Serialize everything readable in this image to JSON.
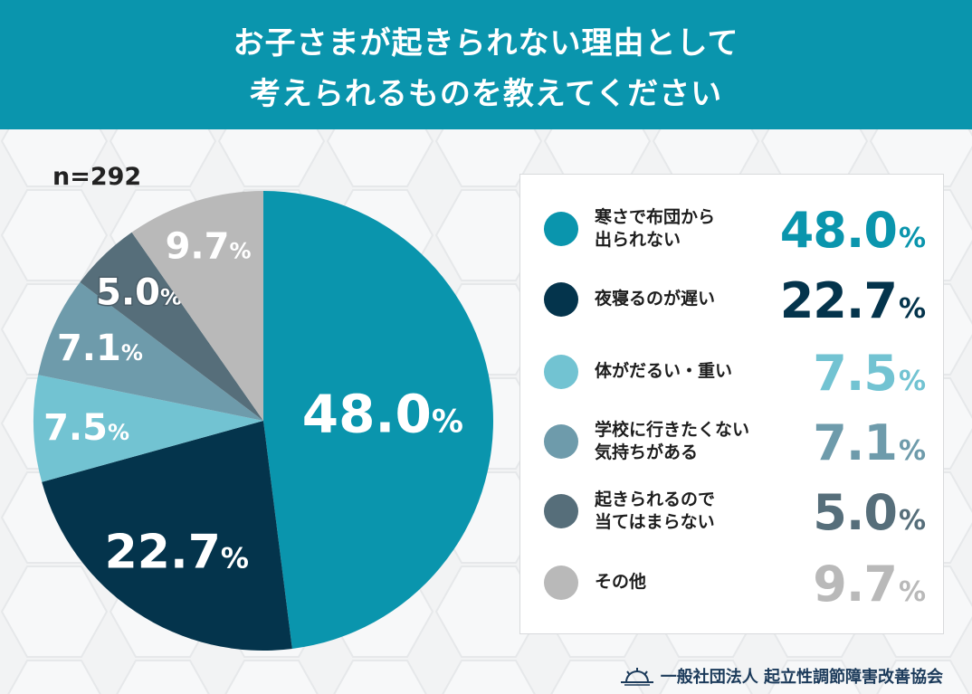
{
  "header": {
    "title_line1": "お子さまが起きられない理由として",
    "title_line2": "考えられるものを教えてください"
  },
  "sample": "n=292",
  "footer": {
    "org": "一般社団法人 起立性調節障害改善協会"
  },
  "chart_data": {
    "type": "pie",
    "title": "お子さまが起きられない理由として考えられるものを教えてください",
    "slices": [
      {
        "label": "寒さで布団から出られない",
        "label_lines": [
          "寒さで布団から",
          "出られない"
        ],
        "value": 48.0,
        "display": "48.0",
        "color": "#0a95ad",
        "text_color": "#0a95ad",
        "pie_label_color": "#ffffff"
      },
      {
        "label": "夜寝るのが遅い",
        "label_lines": [
          "夜寝るのが遅い"
        ],
        "value": 22.7,
        "display": "22.7",
        "color": "#04344c",
        "text_color": "#04344c",
        "pie_label_color": "#ffffff"
      },
      {
        "label": "体がだるい・重い",
        "label_lines": [
          "体がだるい・重い"
        ],
        "value": 7.5,
        "display": "7.5",
        "color": "#72c3d2",
        "text_color": "#72c3d2",
        "pie_label_color": "#ffffff"
      },
      {
        "label": "学校に行きたくない気持ちがある",
        "label_lines": [
          "学校に行きたくない",
          "気持ちがある"
        ],
        "value": 7.1,
        "display": "7.1",
        "color": "#6e9bab",
        "text_color": "#6e9bab",
        "pie_label_color": "#ffffff"
      },
      {
        "label": "起きられるので当てはまらない",
        "label_lines": [
          "起きられるので",
          "当てはまらない"
        ],
        "value": 5.0,
        "display": "5.0",
        "color": "#566e7a",
        "text_color": "#566e7a",
        "pie_label_color": "#ffffff"
      },
      {
        "label": "その他",
        "label_lines": [
          "その他"
        ],
        "value": 9.7,
        "display": "9.7",
        "color": "#b9b9b9",
        "text_color": "#b9b9b9",
        "pie_label_color": "#ffffff"
      }
    ],
    "percent_sign": "%",
    "legend_placement": "right"
  }
}
